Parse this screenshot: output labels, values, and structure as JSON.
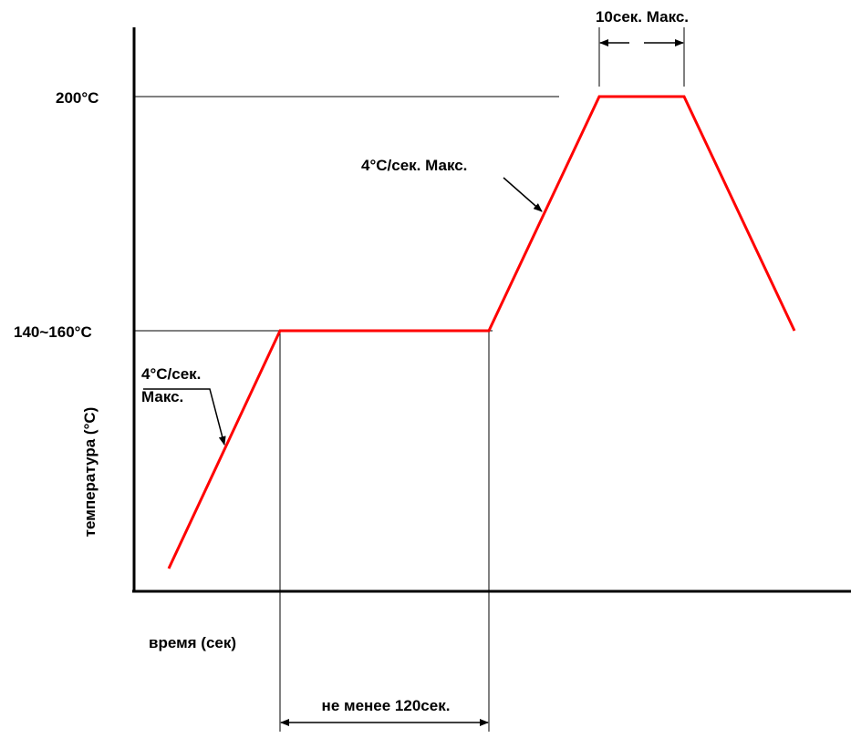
{
  "labels": {
    "y_axis": "температура (°C)",
    "x_axis": "время (сек)",
    "peak_temp": "200°C",
    "soak_temp": "140~160°C",
    "ramp1_rate_line1": "4°C/сек.",
    "ramp1_rate_line2": "Макс.",
    "ramp2_rate": "4°C/сек. Макс.",
    "peak_duration": "10сек. Макс.",
    "soak_duration": "не менее 120сек."
  },
  "colors": {
    "profile": "#ff0000",
    "lines": "#000000",
    "background": "#ffffff"
  }
}
